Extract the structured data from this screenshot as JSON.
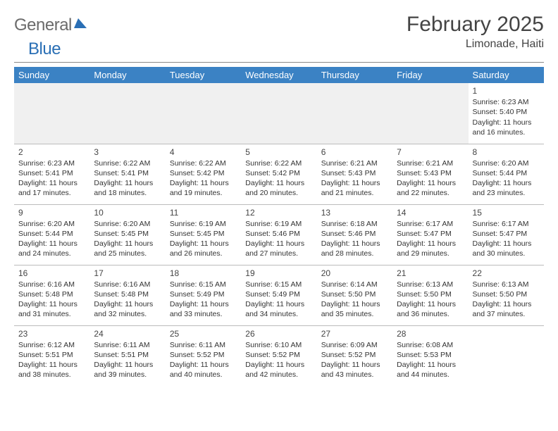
{
  "logo": {
    "word1": "General",
    "word2": "Blue"
  },
  "title": "February 2025",
  "location": "Limonade, Haiti",
  "header_bg": "#3b82c4",
  "header_text_color": "#ffffff",
  "day_headers": [
    "Sunday",
    "Monday",
    "Tuesday",
    "Wednesday",
    "Thursday",
    "Friday",
    "Saturday"
  ],
  "weeks": [
    [
      null,
      null,
      null,
      null,
      null,
      null,
      {
        "n": "1",
        "sr": "6:23 AM",
        "ss": "5:40 PM",
        "dlh": "11",
        "dlm": "16"
      }
    ],
    [
      {
        "n": "2",
        "sr": "6:23 AM",
        "ss": "5:41 PM",
        "dlh": "11",
        "dlm": "17"
      },
      {
        "n": "3",
        "sr": "6:22 AM",
        "ss": "5:41 PM",
        "dlh": "11",
        "dlm": "18"
      },
      {
        "n": "4",
        "sr": "6:22 AM",
        "ss": "5:42 PM",
        "dlh": "11",
        "dlm": "19"
      },
      {
        "n": "5",
        "sr": "6:22 AM",
        "ss": "5:42 PM",
        "dlh": "11",
        "dlm": "20"
      },
      {
        "n": "6",
        "sr": "6:21 AM",
        "ss": "5:43 PM",
        "dlh": "11",
        "dlm": "21"
      },
      {
        "n": "7",
        "sr": "6:21 AM",
        "ss": "5:43 PM",
        "dlh": "11",
        "dlm": "22"
      },
      {
        "n": "8",
        "sr": "6:20 AM",
        "ss": "5:44 PM",
        "dlh": "11",
        "dlm": "23"
      }
    ],
    [
      {
        "n": "9",
        "sr": "6:20 AM",
        "ss": "5:44 PM",
        "dlh": "11",
        "dlm": "24"
      },
      {
        "n": "10",
        "sr": "6:20 AM",
        "ss": "5:45 PM",
        "dlh": "11",
        "dlm": "25"
      },
      {
        "n": "11",
        "sr": "6:19 AM",
        "ss": "5:45 PM",
        "dlh": "11",
        "dlm": "26"
      },
      {
        "n": "12",
        "sr": "6:19 AM",
        "ss": "5:46 PM",
        "dlh": "11",
        "dlm": "27"
      },
      {
        "n": "13",
        "sr": "6:18 AM",
        "ss": "5:46 PM",
        "dlh": "11",
        "dlm": "28"
      },
      {
        "n": "14",
        "sr": "6:17 AM",
        "ss": "5:47 PM",
        "dlh": "11",
        "dlm": "29"
      },
      {
        "n": "15",
        "sr": "6:17 AM",
        "ss": "5:47 PM",
        "dlh": "11",
        "dlm": "30"
      }
    ],
    [
      {
        "n": "16",
        "sr": "6:16 AM",
        "ss": "5:48 PM",
        "dlh": "11",
        "dlm": "31"
      },
      {
        "n": "17",
        "sr": "6:16 AM",
        "ss": "5:48 PM",
        "dlh": "11",
        "dlm": "32"
      },
      {
        "n": "18",
        "sr": "6:15 AM",
        "ss": "5:49 PM",
        "dlh": "11",
        "dlm": "33"
      },
      {
        "n": "19",
        "sr": "6:15 AM",
        "ss": "5:49 PM",
        "dlh": "11",
        "dlm": "34"
      },
      {
        "n": "20",
        "sr": "6:14 AM",
        "ss": "5:50 PM",
        "dlh": "11",
        "dlm": "35"
      },
      {
        "n": "21",
        "sr": "6:13 AM",
        "ss": "5:50 PM",
        "dlh": "11",
        "dlm": "36"
      },
      {
        "n": "22",
        "sr": "6:13 AM",
        "ss": "5:50 PM",
        "dlh": "11",
        "dlm": "37"
      }
    ],
    [
      {
        "n": "23",
        "sr": "6:12 AM",
        "ss": "5:51 PM",
        "dlh": "11",
        "dlm": "38"
      },
      {
        "n": "24",
        "sr": "6:11 AM",
        "ss": "5:51 PM",
        "dlh": "11",
        "dlm": "39"
      },
      {
        "n": "25",
        "sr": "6:11 AM",
        "ss": "5:52 PM",
        "dlh": "11",
        "dlm": "40"
      },
      {
        "n": "26",
        "sr": "6:10 AM",
        "ss": "5:52 PM",
        "dlh": "11",
        "dlm": "42"
      },
      {
        "n": "27",
        "sr": "6:09 AM",
        "ss": "5:52 PM",
        "dlh": "11",
        "dlm": "43"
      },
      {
        "n": "28",
        "sr": "6:08 AM",
        "ss": "5:53 PM",
        "dlh": "11",
        "dlm": "44"
      },
      null
    ]
  ],
  "labels": {
    "sunrise": "Sunrise:",
    "sunset": "Sunset:",
    "daylight_prefix": "Daylight:",
    "hours_word": "hours",
    "and_word": "and",
    "minutes_word": "minutes."
  },
  "colors": {
    "text": "#333333",
    "title": "#444444",
    "divider": "#888888",
    "row_border": "#bcbcbc",
    "blank_bg": "#f0f0f0",
    "logo_gray": "#6b6b6b",
    "logo_blue": "#2a6fb5"
  },
  "fonts": {
    "title_size_pt": 22,
    "location_size_pt": 12,
    "header_size_pt": 10,
    "cell_size_pt": 8
  }
}
